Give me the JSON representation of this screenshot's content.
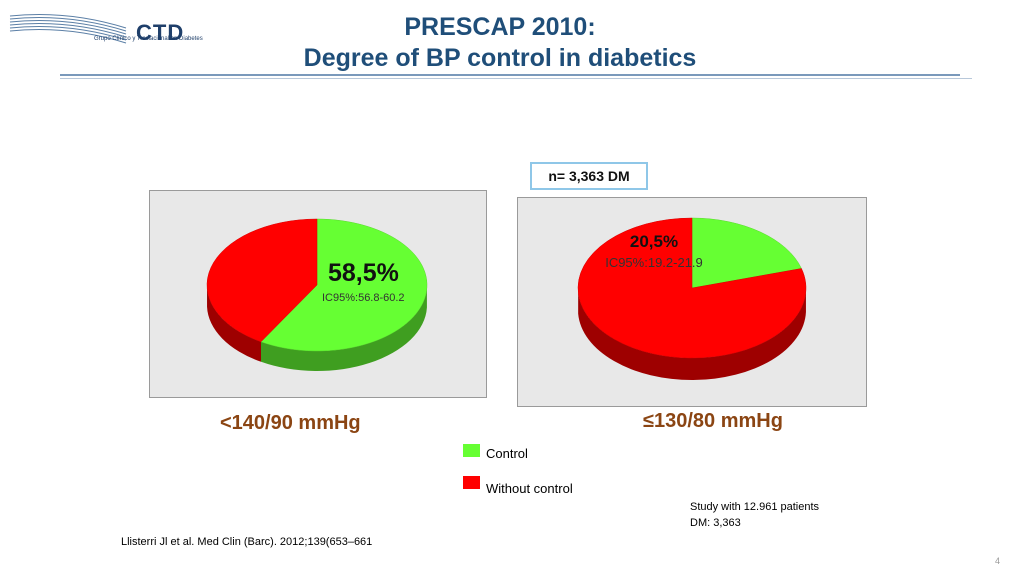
{
  "logo": {
    "name": "CTD",
    "subtitle": "Grupo Clínico y Traslacional en Diabetes"
  },
  "title": {
    "line1": "PRESCAP 2010:",
    "line2": "Degree of BP control in diabetics"
  },
  "sample": "n= 3,363 DM",
  "legend": {
    "items": [
      {
        "label": "Control",
        "color": "#66ff33"
      },
      {
        "label": "Without control",
        "color": "#ff0000"
      }
    ]
  },
  "note": {
    "line1": "Study with 12.961 patients",
    "line2": "DM: 3,363"
  },
  "citation": "Llisterri Jl et al. Med Clin (Barc). 2012;139(653–661",
  "page_number": "4",
  "chart_data": [
    {
      "type": "pie",
      "threshold_label": "<140/90 mmHg",
      "slices": [
        {
          "name": "Control",
          "value": 58.5,
          "color": "#66ff33",
          "label": "58,5%",
          "ci": "IC95%:56.8-60.2"
        },
        {
          "name": "Without control",
          "value": 41.5,
          "color": "#ff0000"
        }
      ]
    },
    {
      "type": "pie",
      "threshold_label": "≤130/80 mmHg",
      "slices": [
        {
          "name": "Control",
          "value": 20.5,
          "color": "#66ff33",
          "label": "20,5%",
          "ci": "IC95%:19.2-21.9"
        },
        {
          "name": "Without control",
          "value": 79.5,
          "color": "#ff0000"
        }
      ]
    }
  ]
}
